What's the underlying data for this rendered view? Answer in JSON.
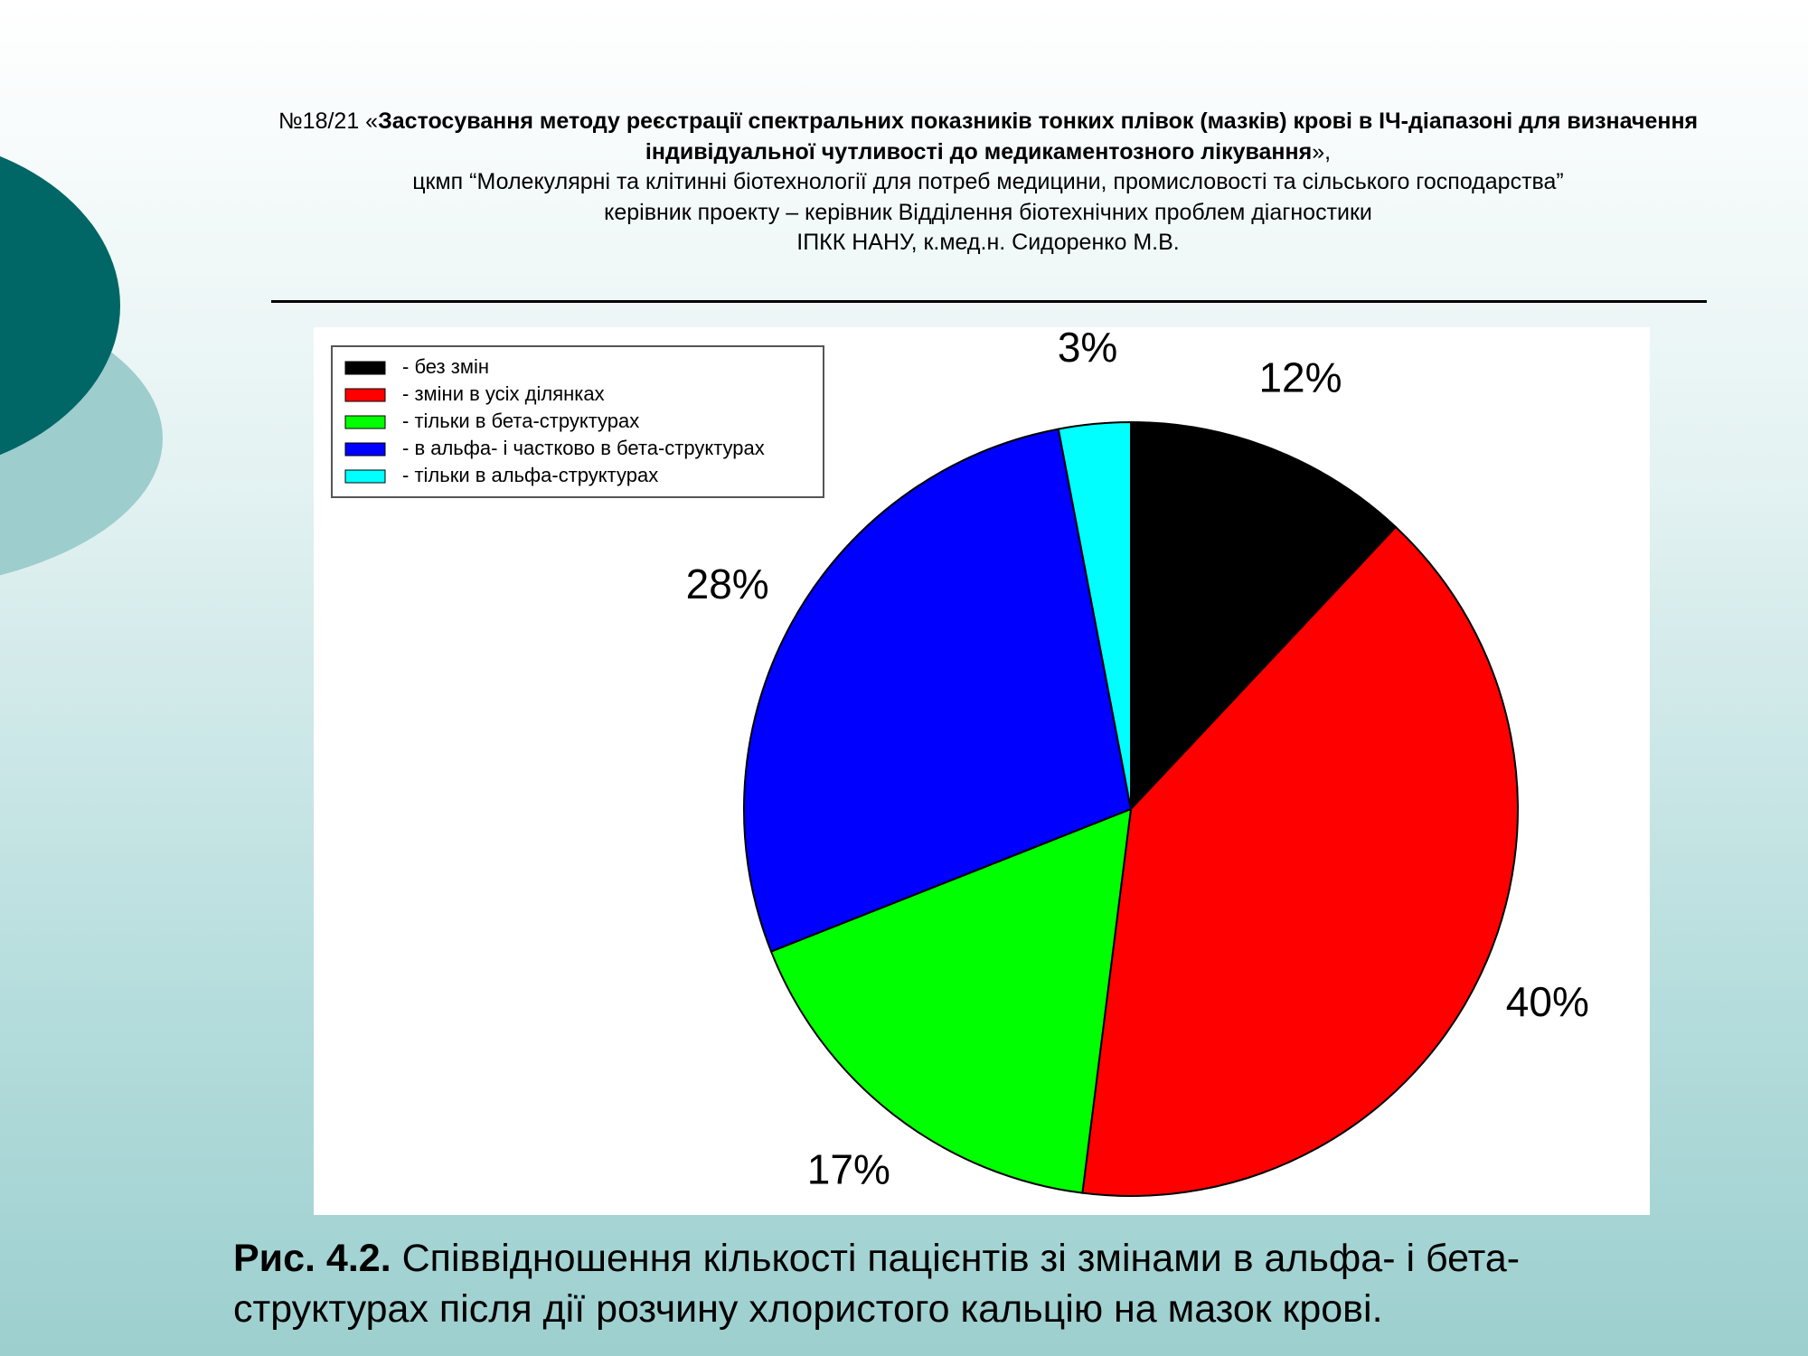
{
  "header": {
    "prefix": "№18/21 «",
    "project_title": "Застосування методу реєстрації спектральних показників тонких плівок (мазків) крові в ІЧ-діапазоні для визначення індивідуальної чутливості до медикаментозного лікування",
    "suffix": "»,",
    "lines": [
      "цкмп “Молекулярні та клітинні біотехнології для потреб медицини, промисловості та сільського господарства”",
      "керівник проекту – керівник Відділення біотехнічних проблем діагностики",
      "ІПКК НАНУ, к.мед.н. Сидоренко М.В."
    ]
  },
  "chart_data": {
    "type": "pie",
    "categories": [
      "- без змін",
      "- зміни в усіх ділянках",
      "- тільки в бета-структурах",
      "- в альфа- і частково в бета-структурах",
      "- тільки в альфа-структурах"
    ],
    "values": [
      12,
      40,
      17,
      28,
      3
    ],
    "value_labels": [
      "12%",
      "40%",
      "17%",
      "28%",
      "3%"
    ],
    "colors": [
      "#000000",
      "#ff0000",
      "#00ff00",
      "#0000ff",
      "#00ffff"
    ],
    "legend": "upper left"
  },
  "caption": {
    "label": "Рис. 4.2.",
    "text": "Співвідношення кількості пацієнтів зі змінами в альфа- і бета-структурах після дії розчину хлористого кальцію на мазок крові."
  }
}
